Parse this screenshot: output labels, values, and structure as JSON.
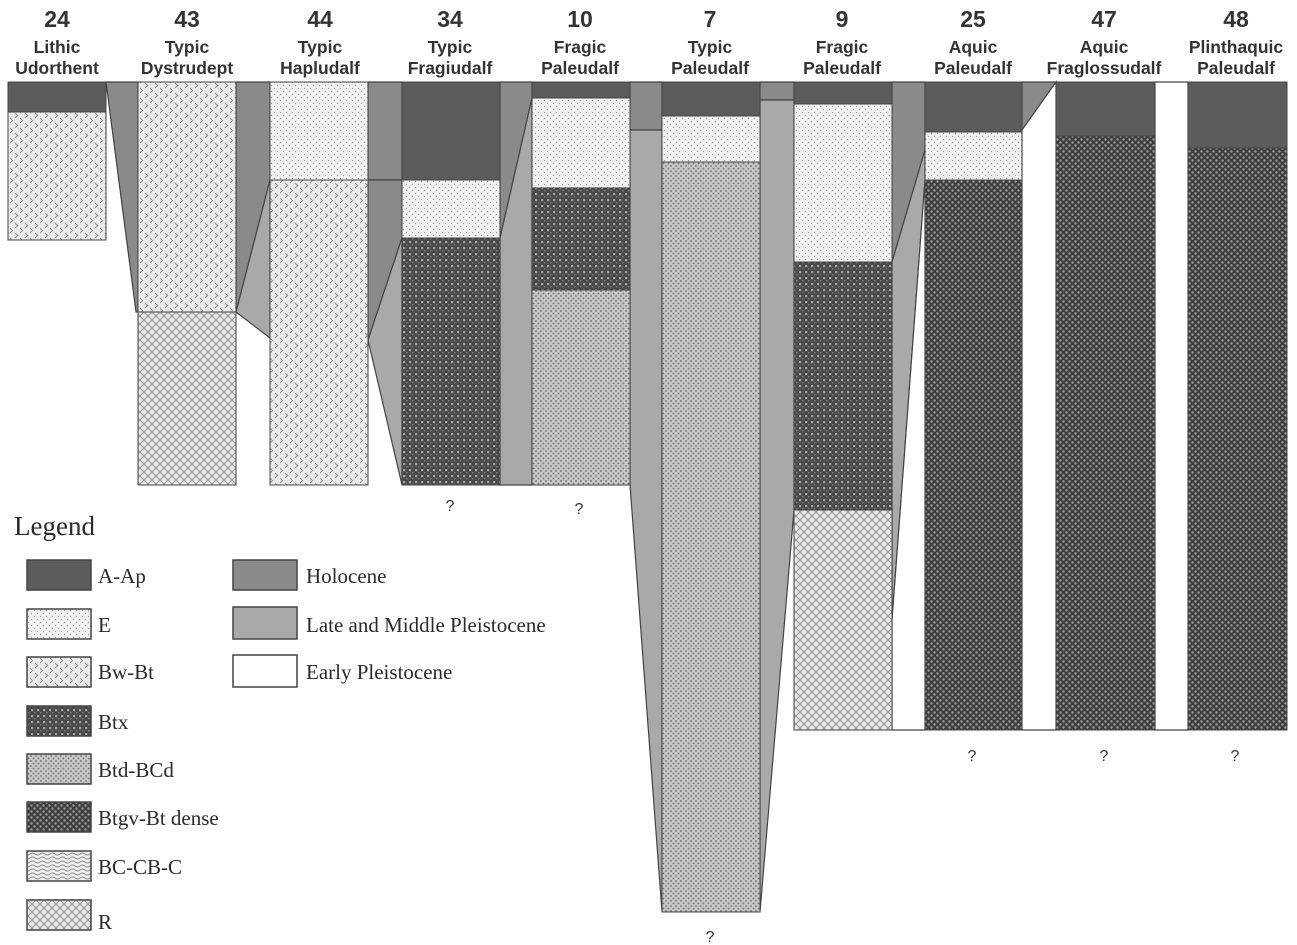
{
  "profiles": [
    {
      "id": "24",
      "name1": "Lithic",
      "name2": "Udorthent"
    },
    {
      "id": "43",
      "name1": "Typic",
      "name2": "Dystrudept"
    },
    {
      "id": "44",
      "name1": "Typic",
      "name2": "Hapludalf"
    },
    {
      "id": "34",
      "name1": "Typic",
      "name2": "Fragiudalf"
    },
    {
      "id": "10",
      "name1": "Fragic",
      "name2": "Paleudalf"
    },
    {
      "id": "7",
      "name1": "Typic",
      "name2": "Paleudalf"
    },
    {
      "id": "9",
      "name1": "Fragic",
      "name2": "Paleudalf"
    },
    {
      "id": "25",
      "name1": "Aquic",
      "name2": "Paleudalf"
    },
    {
      "id": "47",
      "name1": "Aquic",
      "name2": "Fraglossudalf"
    },
    {
      "id": "48",
      "name1": "Plinthaquic",
      "name2": "Paleudalf"
    }
  ],
  "unknown_marker": "?",
  "legend": {
    "title": "Legend",
    "horizons": [
      "A-Ap",
      "E",
      "Bw-Bt",
      "Btx",
      "Btd-BCd",
      "Btgv-Bt dense",
      "BC-CB-C",
      "R"
    ],
    "ages": [
      "Holocene",
      "Late and Middle Pleistocene",
      "Early Pleistocene"
    ]
  },
  "colors": {
    "A-Ap": "#5c5c5c",
    "Holocene": "#8a8a8a",
    "Late and Middle Pleistocene": "#a9a9a9",
    "Early Pleistocene": "#ffffff",
    "outline": "#444444"
  }
}
